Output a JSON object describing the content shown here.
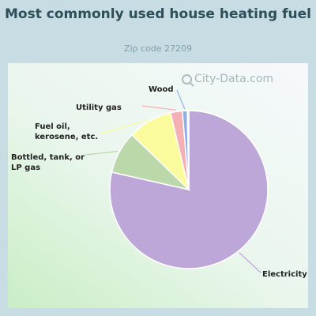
{
  "header": {
    "title": "Most commonly used house heating fuel",
    "subtitle": "Zip code 27209"
  },
  "watermark": {
    "text": "City-Data.com",
    "icon": "magnifier-icon"
  },
  "chart_data": {
    "type": "pie",
    "title": "Most commonly used house heating fuel",
    "subtitle": "Zip code 27209",
    "slices": [
      {
        "label": "Electricity",
        "value": 78.0,
        "color": "#bda6d8"
      },
      {
        "label": "Bottled, tank, or LP gas",
        "value": 8.6,
        "color": "#bad8aa"
      },
      {
        "label": "Fuel oil, kerosene, etc.",
        "value": 9.0,
        "color": "#fafb9c"
      },
      {
        "label": "Utility gas",
        "value": 2.4,
        "color": "#f5b0b4"
      },
      {
        "label": "Wood",
        "value": 1.0,
        "color": "#8fb0e6"
      },
      {
        "label": "",
        "value": 0.3,
        "color": "#f1f2c8"
      }
    ],
    "start_angle_deg": 0,
    "direction": "clockwise"
  }
}
